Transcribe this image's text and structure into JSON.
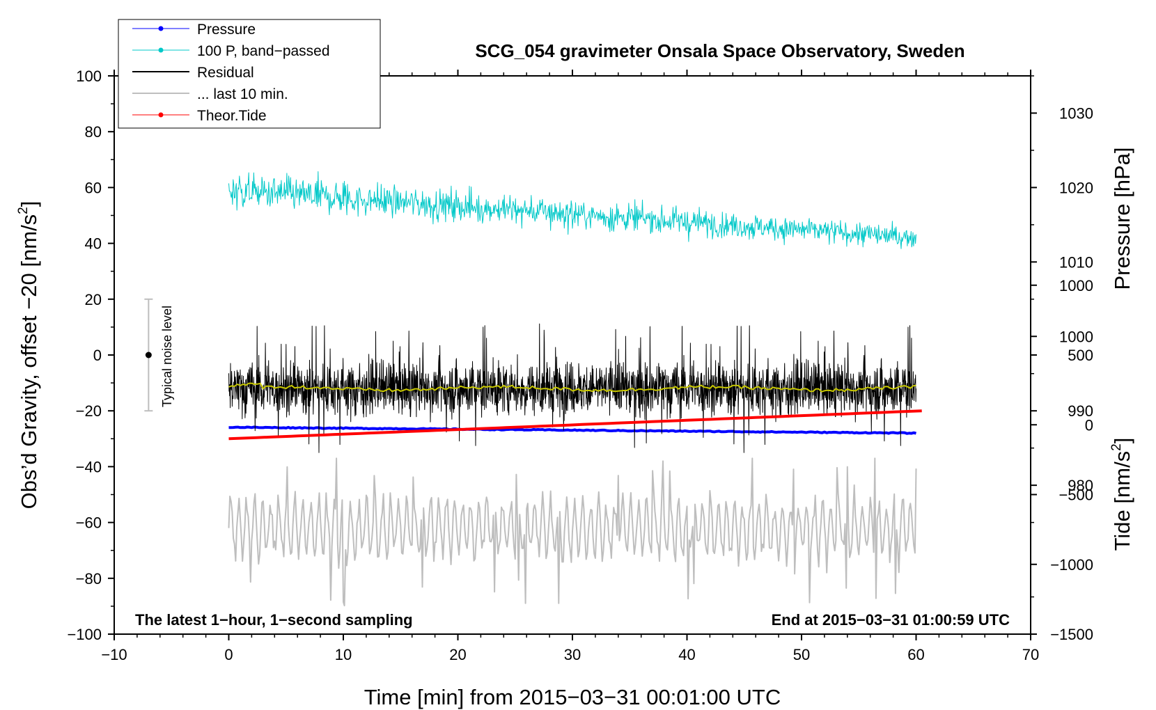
{
  "chart_data": {
    "type": "line",
    "title": "SCG_054 gravimeter Onsala Space Observatory, Sweden",
    "xlabel": "Time [min] from 2015−03−31 00:01:00 UTC",
    "ylabel_left_main": "Obs’d Gravity, offset −20 [nm/s",
    "ylabel_left_sup": "2",
    "ylabel_left_end": "]",
    "ylabel_right_pressure": "Pressure [hPa]",
    "ylabel_right_tide_main": "Tide [nm/s",
    "ylabel_right_tide_sup": "2",
    "ylabel_right_tide_end": "]",
    "xlim": [
      -10,
      70
    ],
    "ylim_left": [
      -100,
      100
    ],
    "ylim_pressure": [
      960,
      1035
    ],
    "ylim_tide": [
      -1500,
      2500
    ],
    "x_ticks": [
      "−10",
      "0",
      "10",
      "20",
      "30",
      "40",
      "50",
      "60",
      "70"
    ],
    "x_tick_values": [
      -10,
      0,
      10,
      20,
      30,
      40,
      50,
      60,
      70
    ],
    "y_ticks_left": [
      "−100",
      "−80",
      "−60",
      "−40",
      "−20",
      "0",
      "20",
      "40",
      "60",
      "80",
      "100"
    ],
    "y_tick_values_left": [
      -100,
      -80,
      -60,
      -40,
      -20,
      0,
      20,
      40,
      60,
      80,
      100
    ],
    "y_ticks_pressure": [
      "980",
      "990",
      "1000",
      "1010",
      "1020",
      "1030"
    ],
    "y_tick_values_pressure": [
      980,
      990,
      1000,
      1010,
      1020,
      1030
    ],
    "y_ticks_tide": [
      "−1500",
      "−1000",
      "−500",
      "0",
      "500",
      "1000"
    ],
    "y_tick_values_tide": [
      -1500,
      -1000,
      -500,
      0,
      500,
      1000
    ],
    "note_left": "The latest 1−hour, 1−second sampling",
    "note_right": "End at 2015−03−31 01:00:59 UTC",
    "noise_label": "Typical noise level",
    "noise_bar": {
      "x": -7,
      "center": 0,
      "low": -20,
      "high": 20
    },
    "legend": [
      {
        "label": "Pressure",
        "color": "#0000ff",
        "marker": true
      },
      {
        "label": "100 P, band−passed",
        "color": "#00c8c8",
        "marker": true
      },
      {
        "label": "Residual",
        "color": "#000000",
        "marker": false
      },
      {
        "label": "... last 10 min.",
        "color": "#bebebe",
        "marker": false
      },
      {
        "label": "Theor.Tide",
        "color": "#ff0000",
        "marker": true
      }
    ],
    "series": [
      {
        "name": "Pressure",
        "axis": "pressure",
        "color": "#0000ff",
        "x_range": [
          0,
          60
        ],
        "start": 987.8,
        "end": 987.0
      },
      {
        "name": "100 P, band−passed",
        "axis": "left",
        "color": "#00c8c8",
        "x_range": [
          0,
          60
        ],
        "start_mean": 59,
        "end_mean": 42,
        "amplitude": 6
      },
      {
        "name": "Residual",
        "axis": "left",
        "color": "#000000",
        "x_range": [
          0,
          60
        ],
        "mean": -12,
        "amplitude": 12,
        "max": 12,
        "min": -41
      },
      {
        "name": "Residual smoothed",
        "axis": "left",
        "color": "#c8c800",
        "x_range": [
          0,
          60
        ],
        "mean": -12
      },
      {
        "name": "... last 10 min.",
        "axis": "left",
        "color": "#bebebe",
        "x_range": [
          0,
          60
        ],
        "mean": -62,
        "amplitude": 12,
        "max": -37,
        "min": -91
      },
      {
        "name": "Theor.Tide",
        "axis": "tide",
        "color": "#ff0000",
        "x_range": [
          0,
          60.5
        ],
        "start": -100,
        "end": 100
      }
    ]
  }
}
